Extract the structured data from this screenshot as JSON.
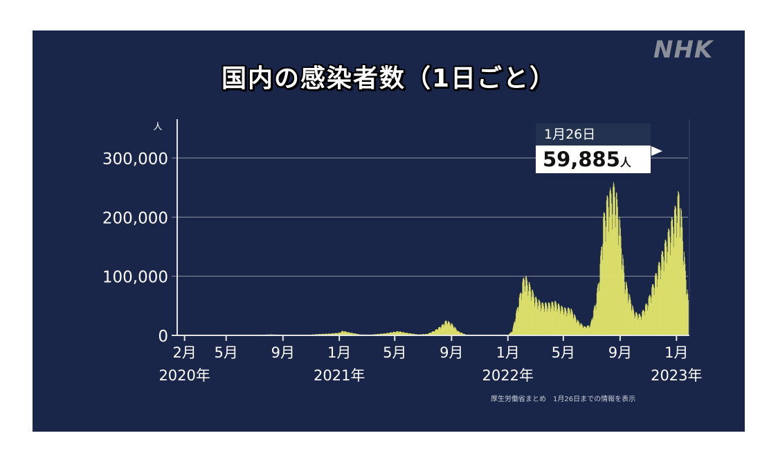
{
  "header": {
    "logo": "NHK",
    "title": "国内の感染者数（1日ごと）"
  },
  "source_note": "厚生労働省まとめ　1月26日までの情報を表示",
  "tooltip": {
    "date": "1月26日",
    "value": "59,885",
    "unit": "人"
  },
  "colors": {
    "background": "#19264a",
    "bars": "#dde06a",
    "grid": "#8f95a6",
    "text": "#ffffff"
  },
  "chart_data": {
    "type": "bar",
    "title": "国内の感染者数（1日ごと）",
    "ylabel": "人",
    "ylim": [
      0,
      300000
    ],
    "y_ticks": [
      {
        "value": 0,
        "label": "0"
      },
      {
        "value": 100000,
        "label": "100,000"
      },
      {
        "value": 200000,
        "label": "200,000"
      },
      {
        "value": 300000,
        "label": "300,000"
      }
    ],
    "x_ticks": [
      {
        "date": "2020-02-01",
        "month": "2月",
        "year": "2020年"
      },
      {
        "date": "2020-05-01",
        "month": "5月",
        "year": ""
      },
      {
        "date": "2020-09-01",
        "month": "9月",
        "year": ""
      },
      {
        "date": "2021-01-01",
        "month": "1月",
        "year": "2021年"
      },
      {
        "date": "2021-05-01",
        "month": "5月",
        "year": ""
      },
      {
        "date": "2021-09-01",
        "month": "9月",
        "year": ""
      },
      {
        "date": "2022-01-01",
        "month": "1月",
        "year": "2022年"
      },
      {
        "date": "2022-05-01",
        "month": "5月",
        "year": ""
      },
      {
        "date": "2022-09-01",
        "month": "9月",
        "year": ""
      },
      {
        "date": "2023-01-01",
        "month": "1月",
        "year": "2023年"
      }
    ],
    "x_range": [
      "2020-01-16",
      "2023-01-26"
    ],
    "grid": "horizontal",
    "series": [
      {
        "values": [
          [
            "2020-01-16",
            0
          ],
          [
            "2020-03-01",
            10
          ],
          [
            "2020-04-11",
            700
          ],
          [
            "2020-05-20",
            30
          ],
          [
            "2020-06-20",
            100
          ],
          [
            "2020-07-31",
            1500
          ],
          [
            "2020-08-07",
            1600
          ],
          [
            "2020-09-15",
            500
          ],
          [
            "2020-10-20",
            600
          ],
          [
            "2020-11-20",
            2400
          ],
          [
            "2020-12-10",
            3000
          ],
          [
            "2020-12-31",
            4500
          ],
          [
            "2021-01-08",
            7900
          ],
          [
            "2021-01-20",
            5500
          ],
          [
            "2021-02-15",
            1500
          ],
          [
            "2021-03-10",
            1300
          ],
          [
            "2021-04-10",
            3500
          ],
          [
            "2021-05-08",
            7200
          ],
          [
            "2021-05-25",
            4500
          ],
          [
            "2021-06-20",
            1500
          ],
          [
            "2021-07-10",
            2500
          ],
          [
            "2021-07-25",
            8000
          ],
          [
            "2021-08-10",
            17000
          ],
          [
            "2021-08-20",
            25800
          ],
          [
            "2021-09-01",
            20000
          ],
          [
            "2021-09-15",
            7000
          ],
          [
            "2021-10-01",
            1500
          ],
          [
            "2021-11-01",
            200
          ],
          [
            "2021-12-15",
            200
          ],
          [
            "2022-01-01",
            500
          ],
          [
            "2022-01-10",
            8000
          ],
          [
            "2022-01-20",
            45000
          ],
          [
            "2022-02-01",
            90000
          ],
          [
            "2022-02-05",
            104000
          ],
          [
            "2022-02-15",
            90000
          ],
          [
            "2022-03-01",
            65000
          ],
          [
            "2022-03-15",
            55000
          ],
          [
            "2022-04-01",
            55000
          ],
          [
            "2022-04-12",
            58000
          ],
          [
            "2022-04-25",
            50000
          ],
          [
            "2022-05-08",
            45000
          ],
          [
            "2022-05-15",
            48000
          ],
          [
            "2022-06-01",
            25000
          ],
          [
            "2022-06-15",
            15000
          ],
          [
            "2022-06-28",
            18000
          ],
          [
            "2022-07-10",
            60000
          ],
          [
            "2022-07-18",
            110000
          ],
          [
            "2022-07-26",
            200000
          ],
          [
            "2022-08-05",
            240000
          ],
          [
            "2022-08-15",
            250000
          ],
          [
            "2022-08-20",
            260000
          ],
          [
            "2022-08-30",
            200000
          ],
          [
            "2022-09-10",
            100000
          ],
          [
            "2022-09-20",
            70000
          ],
          [
            "2022-10-01",
            40000
          ],
          [
            "2022-10-15",
            35000
          ],
          [
            "2022-10-31",
            60000
          ],
          [
            "2022-11-15",
            100000
          ],
          [
            "2022-11-30",
            140000
          ],
          [
            "2022-12-15",
            180000
          ],
          [
            "2022-12-28",
            215000
          ],
          [
            "2023-01-06",
            246000
          ],
          [
            "2023-01-12",
            200000
          ],
          [
            "2023-01-18",
            130000
          ],
          [
            "2023-01-26",
            59885
          ]
        ]
      }
    ]
  }
}
